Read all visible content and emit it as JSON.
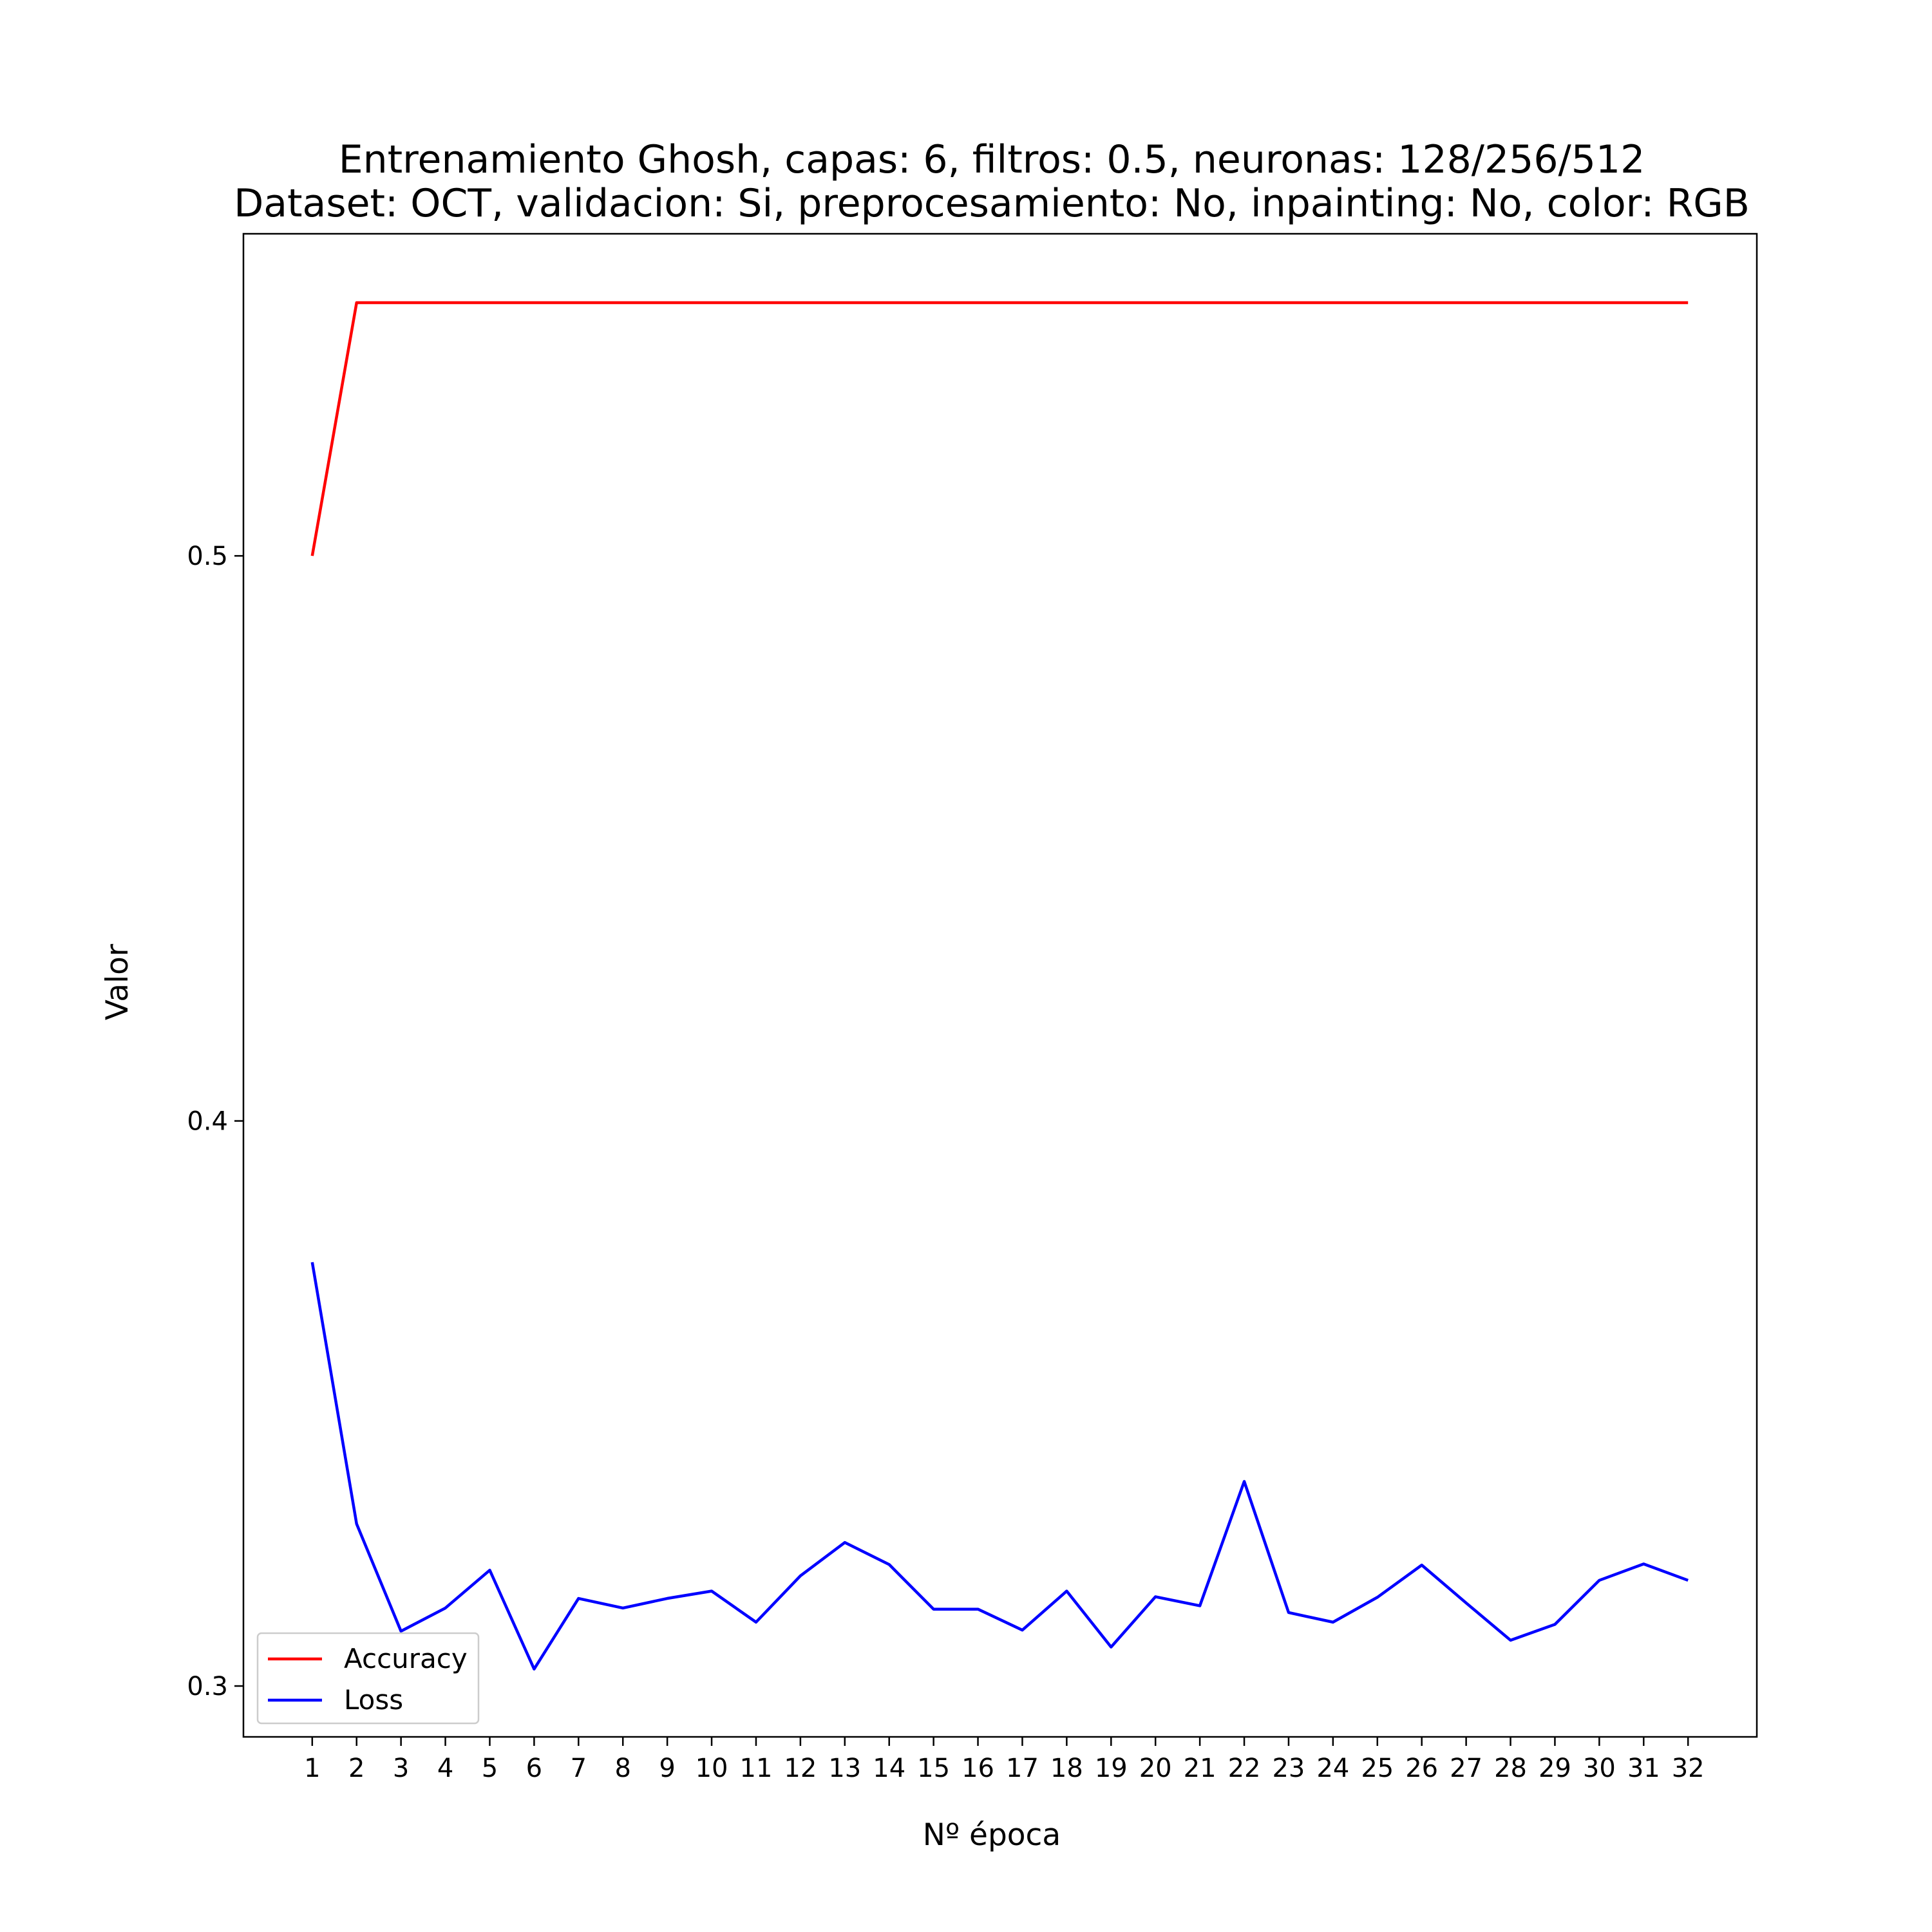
{
  "chart_data": {
    "type": "line",
    "title": "Entrenamiento Ghosh, capas: 6, filtros: 0.5, neuronas: 128/256/512",
    "subtitle": "Dataset: OCT, validacion: Si, preprocesamiento: No, inpainting: No, color: RGB",
    "xlabel": "Nº época",
    "ylabel": "Valor",
    "x": [
      1,
      2,
      3,
      4,
      5,
      6,
      7,
      8,
      9,
      10,
      11,
      12,
      13,
      14,
      15,
      16,
      17,
      18,
      19,
      20,
      21,
      22,
      23,
      24,
      25,
      26,
      27,
      28,
      29,
      30,
      31,
      32
    ],
    "y_ticks": [
      0.3,
      0.4,
      0.5
    ],
    "y_tick_labels": [
      "0.3",
      "0.4",
      "0.5"
    ],
    "ylim": [
      0.291,
      0.557
    ],
    "xlim": [
      -0.55,
      33.55
    ],
    "grid": false,
    "legend_position": "lower-left",
    "series": [
      {
        "name": "Accuracy",
        "color": "#ff0000",
        "values": [
          0.5,
          0.5448,
          0.5448,
          0.5448,
          0.5448,
          0.5448,
          0.5448,
          0.5448,
          0.5448,
          0.5448,
          0.5448,
          0.5448,
          0.5448,
          0.5448,
          0.5448,
          0.5448,
          0.5448,
          0.5448,
          0.5448,
          0.5448,
          0.5448,
          0.5448,
          0.5448,
          0.5448,
          0.5448,
          0.5448,
          0.5448,
          0.5448,
          0.5448,
          0.5448,
          0.5448,
          0.5448
        ]
      },
      {
        "name": "Loss",
        "color": "#0000ff",
        "values": [
          0.375,
          0.3287,
          0.3097,
          0.3138,
          0.3205,
          0.303,
          0.3155,
          0.3138,
          0.3155,
          0.3168,
          0.3113,
          0.3195,
          0.3254,
          0.3215,
          0.3136,
          0.3136,
          0.3099,
          0.3168,
          0.3069,
          0.3158,
          0.3142,
          0.3362,
          0.313,
          0.3113,
          0.3157,
          0.3214,
          0.3147,
          0.3081,
          0.3109,
          0.3187,
          0.3216,
          0.3187
        ]
      }
    ]
  }
}
